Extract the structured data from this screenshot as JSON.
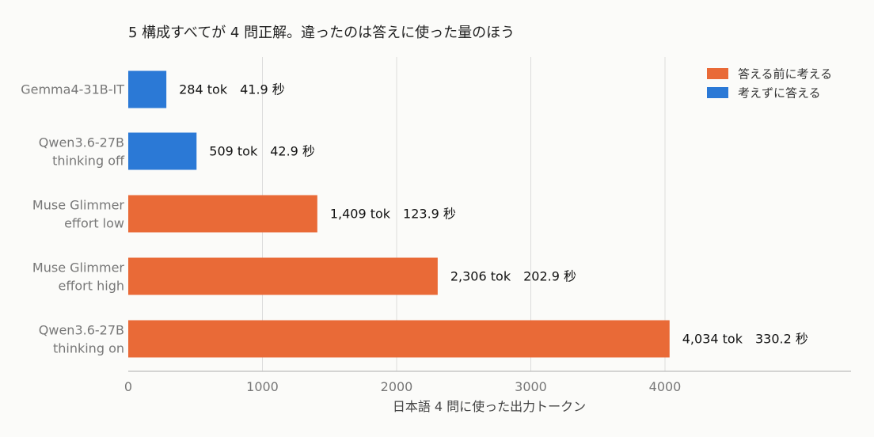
{
  "chart_data": {
    "type": "bar",
    "orientation": "horizontal",
    "title": "5 構成すべてが 4 問正解。違ったのは答えに使った量のほう",
    "xlabel": "日本語 4 問に使った出力トークン",
    "xlim": [
      0,
      5400
    ],
    "xticks": [
      0,
      1000,
      2000,
      3000,
      4000
    ],
    "grid": true,
    "legend_position": "top-right",
    "legend": [
      {
        "name": "答える前に考える",
        "color": "#e96a37"
      },
      {
        "name": "考えずに答える",
        "color": "#2b79d6"
      }
    ],
    "categories": [
      [
        "Gemma4-31B-IT"
      ],
      [
        "Qwen3.6-27B",
        "thinking off"
      ],
      [
        "Muse Glimmer",
        "effort low"
      ],
      [
        "Muse Glimmer",
        "effort high"
      ],
      [
        "Qwen3.6-27B",
        "thinking on"
      ]
    ],
    "values": [
      284,
      509,
      1409,
      2306,
      4034
    ],
    "group": [
      1,
      1,
      0,
      0,
      0
    ],
    "data_labels": [
      "284 tok　41.9 秒",
      "509 tok　42.9 秒",
      "1,409 tok　123.9 秒",
      "2,306 tok　202.9 秒",
      "4,034 tok　330.2 秒"
    ]
  }
}
